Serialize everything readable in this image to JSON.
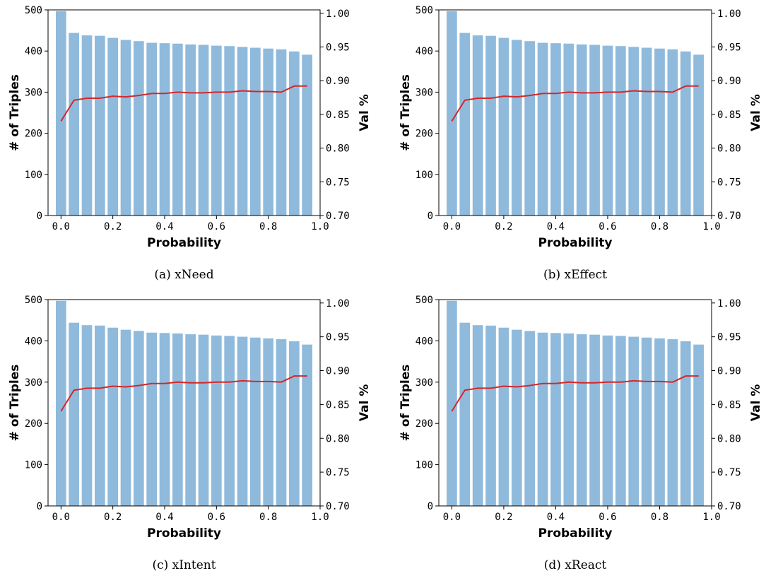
{
  "colors": {
    "bar": "#8fbadc",
    "line": "#d62728",
    "axis": "#000000"
  },
  "chart_data": [
    {
      "type": "bar",
      "caption": "(a) xNeed",
      "xlabel": "Probability",
      "ylabel": "# of Triples",
      "y2label": "Val %",
      "xlim": [
        -0.05,
        1.0
      ],
      "ylim": [
        0,
        500
      ],
      "y2lim": [
        0.7,
        1.005
      ],
      "x_ticks": [
        "0.0",
        "0.2",
        "0.4",
        "0.6",
        "0.8",
        "1.0"
      ],
      "y_ticks": [
        "0",
        "100",
        "200",
        "300",
        "400",
        "500"
      ],
      "y2_ticks": [
        "0.70",
        "0.75",
        "0.80",
        "0.85",
        "0.90",
        "0.95",
        "1.00"
      ],
      "x": [
        0.0,
        0.05,
        0.1,
        0.15,
        0.2,
        0.25,
        0.3,
        0.35,
        0.4,
        0.45,
        0.5,
        0.55,
        0.6,
        0.65,
        0.7,
        0.75,
        0.8,
        0.85,
        0.9,
        0.95
      ],
      "series": [
        {
          "kind": "bar",
          "axis": "left",
          "values": [
            497,
            444,
            438,
            437,
            432,
            427,
            424,
            420,
            419,
            418,
            416,
            415,
            413,
            412,
            410,
            408,
            406,
            404,
            399,
            391
          ]
        },
        {
          "kind": "line",
          "axis": "right",
          "values": [
            0.84,
            0.871,
            0.874,
            0.874,
            0.877,
            0.876,
            0.878,
            0.881,
            0.881,
            0.883,
            0.882,
            0.882,
            0.883,
            0.883,
            0.885,
            0.884,
            0.884,
            0.883,
            0.892,
            0.892
          ]
        }
      ]
    },
    {
      "type": "bar",
      "caption": "(b) xEffect",
      "xlabel": "Probability",
      "ylabel": "# of Triples",
      "y2label": "Val %",
      "xlim": [
        -0.05,
        1.0
      ],
      "ylim": [
        0,
        500
      ],
      "y2lim": [
        0.7,
        1.005
      ],
      "x_ticks": [
        "0.0",
        "0.2",
        "0.4",
        "0.6",
        "0.8",
        "1.0"
      ],
      "y_ticks": [
        "0",
        "100",
        "200",
        "300",
        "400",
        "500"
      ],
      "y2_ticks": [
        "0.70",
        "0.75",
        "0.80",
        "0.85",
        "0.90",
        "0.95",
        "1.00"
      ],
      "x": [
        0.0,
        0.05,
        0.1,
        0.15,
        0.2,
        0.25,
        0.3,
        0.35,
        0.4,
        0.45,
        0.5,
        0.55,
        0.6,
        0.65,
        0.7,
        0.75,
        0.8,
        0.85,
        0.9,
        0.95
      ],
      "series": [
        {
          "kind": "bar",
          "axis": "left",
          "values": [
            497,
            444,
            438,
            437,
            432,
            427,
            424,
            420,
            419,
            418,
            416,
            415,
            413,
            412,
            410,
            408,
            406,
            404,
            399,
            391
          ]
        },
        {
          "kind": "line",
          "axis": "right",
          "values": [
            0.84,
            0.871,
            0.874,
            0.874,
            0.877,
            0.876,
            0.878,
            0.881,
            0.881,
            0.883,
            0.882,
            0.882,
            0.883,
            0.883,
            0.885,
            0.884,
            0.884,
            0.883,
            0.892,
            0.892
          ]
        }
      ]
    },
    {
      "type": "bar",
      "caption": "(c) xIntent",
      "xlabel": "Probability",
      "ylabel": "# of Triples",
      "y2label": "Val %",
      "xlim": [
        -0.05,
        1.0
      ],
      "ylim": [
        0,
        500
      ],
      "y2lim": [
        0.7,
        1.005
      ],
      "x_ticks": [
        "0.0",
        "0.2",
        "0.4",
        "0.6",
        "0.8",
        "1.0"
      ],
      "y_ticks": [
        "0",
        "100",
        "200",
        "300",
        "400",
        "500"
      ],
      "y2_ticks": [
        "0.70",
        "0.75",
        "0.80",
        "0.85",
        "0.90",
        "0.95",
        "1.00"
      ],
      "x": [
        0.0,
        0.05,
        0.1,
        0.15,
        0.2,
        0.25,
        0.3,
        0.35,
        0.4,
        0.45,
        0.5,
        0.55,
        0.6,
        0.65,
        0.7,
        0.75,
        0.8,
        0.85,
        0.9,
        0.95
      ],
      "series": [
        {
          "kind": "bar",
          "axis": "left",
          "values": [
            497,
            444,
            438,
            437,
            432,
            427,
            424,
            420,
            419,
            418,
            416,
            415,
            413,
            412,
            410,
            408,
            406,
            404,
            399,
            391
          ]
        },
        {
          "kind": "line",
          "axis": "right",
          "values": [
            0.84,
            0.871,
            0.874,
            0.874,
            0.877,
            0.876,
            0.878,
            0.881,
            0.881,
            0.883,
            0.882,
            0.882,
            0.883,
            0.883,
            0.885,
            0.884,
            0.884,
            0.883,
            0.892,
            0.892
          ]
        }
      ]
    },
    {
      "type": "bar",
      "caption": "(d) xReact",
      "xlabel": "Probability",
      "ylabel": "# of Triples",
      "y2label": "Val %",
      "xlim": [
        -0.05,
        1.0
      ],
      "ylim": [
        0,
        500
      ],
      "y2lim": [
        0.7,
        1.005
      ],
      "x_ticks": [
        "0.0",
        "0.2",
        "0.4",
        "0.6",
        "0.8",
        "1.0"
      ],
      "y_ticks": [
        "0",
        "100",
        "200",
        "300",
        "400",
        "500"
      ],
      "y2_ticks": [
        "0.70",
        "0.75",
        "0.80",
        "0.85",
        "0.90",
        "0.95",
        "1.00"
      ],
      "x": [
        0.0,
        0.05,
        0.1,
        0.15,
        0.2,
        0.25,
        0.3,
        0.35,
        0.4,
        0.45,
        0.5,
        0.55,
        0.6,
        0.65,
        0.7,
        0.75,
        0.8,
        0.85,
        0.9,
        0.95
      ],
      "series": [
        {
          "kind": "bar",
          "axis": "left",
          "values": [
            497,
            444,
            438,
            437,
            432,
            427,
            424,
            420,
            419,
            418,
            416,
            415,
            413,
            412,
            410,
            408,
            406,
            404,
            399,
            391
          ]
        },
        {
          "kind": "line",
          "axis": "right",
          "values": [
            0.84,
            0.871,
            0.874,
            0.874,
            0.877,
            0.876,
            0.878,
            0.881,
            0.881,
            0.883,
            0.882,
            0.882,
            0.883,
            0.883,
            0.885,
            0.884,
            0.884,
            0.883,
            0.892,
            0.892
          ]
        }
      ]
    }
  ]
}
